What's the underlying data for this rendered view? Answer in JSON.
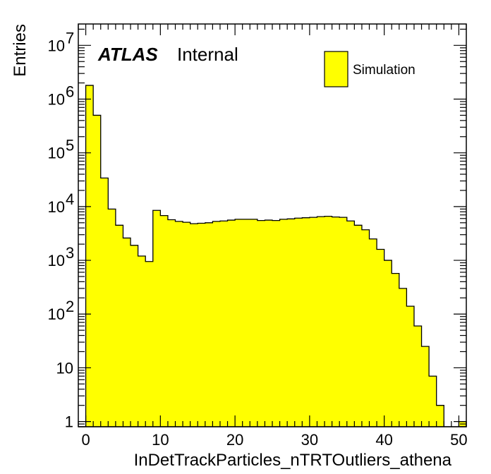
{
  "colors": {
    "fill": "#ffff00",
    "line": "#000000",
    "background": "#ffffff"
  },
  "labels": {
    "atlas": "ATLAS",
    "internal": "Internal",
    "legend": "Simulation",
    "xlabel": "InDetTrackParticles_nTRTOutliers_athena",
    "ylabel": "Entries"
  },
  "chart_data": {
    "type": "bar",
    "histogram": true,
    "xlabel": "InDetTrackParticles_nTRTOutliers_athena",
    "ylabel": "Entries",
    "xlim": [
      -1,
      51
    ],
    "ylim": [
      0.8,
      25000000
    ],
    "yscale": "log",
    "grid": false,
    "legend": {
      "entries": [
        "Simulation"
      ],
      "position": "top-right"
    },
    "annotations": [
      "ATLAS",
      "Internal"
    ],
    "x_ticks": [
      {
        "v": 0,
        "label": "0"
      },
      {
        "v": 10,
        "label": "10"
      },
      {
        "v": 20,
        "label": "20"
      },
      {
        "v": 30,
        "label": "30"
      },
      {
        "v": 40,
        "label": "40"
      },
      {
        "v": 50,
        "label": "50"
      }
    ],
    "y_ticks": [
      {
        "v": 1,
        "base": "1",
        "exp": ""
      },
      {
        "v": 10,
        "base": "10",
        "exp": ""
      },
      {
        "v": 100,
        "base": "10",
        "exp": "2"
      },
      {
        "v": 1000,
        "base": "10",
        "exp": "3"
      },
      {
        "v": 10000,
        "base": "10",
        "exp": "4"
      },
      {
        "v": 100000,
        "base": "10",
        "exp": "5"
      },
      {
        "v": 1000000,
        "base": "10",
        "exp": "6"
      },
      {
        "v": 10000000,
        "base": "10",
        "exp": "7"
      }
    ],
    "bin_edges": [
      -1,
      0,
      1,
      2,
      3,
      4,
      5,
      6,
      7,
      8,
      9,
      10,
      11,
      12,
      13,
      14,
      15,
      16,
      17,
      18,
      19,
      20,
      21,
      22,
      23,
      24,
      25,
      26,
      27,
      28,
      29,
      30,
      31,
      32,
      33,
      34,
      35,
      36,
      37,
      38,
      39,
      40,
      41,
      42,
      43,
      44,
      45,
      46,
      47,
      48,
      49,
      50,
      51
    ],
    "counts": [
      0,
      1800000,
      500000,
      34000,
      9000,
      4500,
      2600,
      1900,
      1200,
      950,
      8500,
      6800,
      5700,
      5300,
      5100,
      4800,
      4900,
      5000,
      5300,
      5400,
      5600,
      5800,
      5800,
      5800,
      5500,
      5600,
      5500,
      5800,
      5900,
      6100,
      6200,
      6300,
      6500,
      6600,
      6400,
      6300,
      5400,
      4500,
      3700,
      2500,
      1600,
      1000,
      570,
      300,
      140,
      60,
      25,
      7,
      2,
      0,
      0,
      1
    ]
  }
}
